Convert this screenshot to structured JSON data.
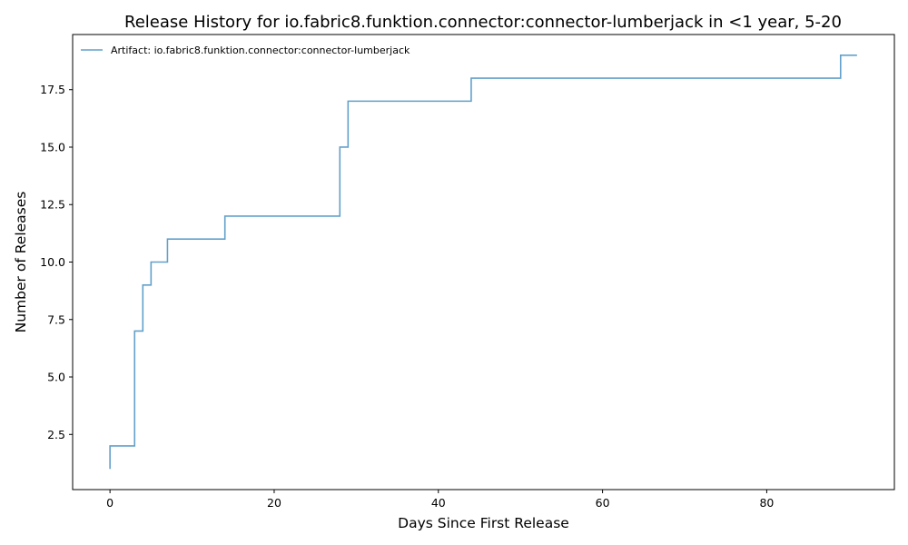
{
  "chart_data": {
    "type": "line",
    "drawstyle": "steps-post",
    "title": "Release History for io.fabric8.funktion.connector:connector-lumberjack in <1 year, 5-20",
    "xlabel": "Days Since First Release",
    "ylabel": "Number of Releases",
    "xlim": [
      -4.55,
      95.55
    ],
    "ylim": [
      0.1,
      19.9
    ],
    "xticks": [
      0,
      20,
      40,
      60,
      80
    ],
    "xtick_labels": [
      "0",
      "20",
      "40",
      "60",
      "80"
    ],
    "yticks": [
      2.5,
      5.0,
      7.5,
      10.0,
      12.5,
      15.0,
      17.5
    ],
    "ytick_labels": [
      "2.5",
      "5.0",
      "7.5",
      "10.0",
      "12.5",
      "15.0",
      "17.5"
    ],
    "grid": false,
    "legend_position": "upper-left",
    "series": [
      {
        "name": "Artifact: io.fabric8.funktion.connector:connector-lumberjack",
        "color": "#1f77b4",
        "x": [
          0,
          0,
          3,
          4,
          5,
          7,
          14,
          28,
          29,
          44,
          89,
          91
        ],
        "y": [
          1,
          2,
          7,
          9,
          10,
          11,
          12,
          15,
          17,
          18,
          19,
          19
        ]
      }
    ]
  }
}
